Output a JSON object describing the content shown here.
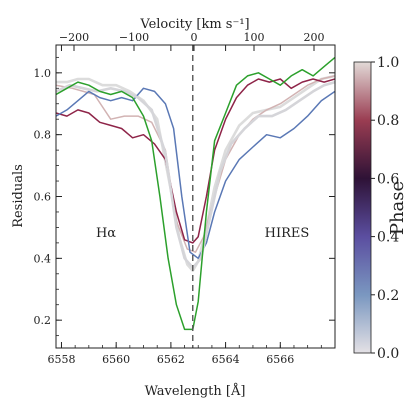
{
  "chart_data": {
    "type": "line",
    "xlabel": "Wavelength [Å]",
    "ylabel": "Residuals",
    "top_axis_label": "Velocity [km s⁻¹]",
    "xlim": [
      6557.8,
      6568.0
    ],
    "ylim": [
      0.11,
      1.09
    ],
    "top_xlim": [
      -230,
      235
    ],
    "x_ticks": [
      "6558",
      "6560",
      "6562",
      "6564",
      "6566"
    ],
    "y_ticks": [
      "0.2",
      "0.4",
      "0.6",
      "0.8",
      "1.0"
    ],
    "top_ticks": [
      "−200",
      "−100",
      "0",
      "100",
      "200"
    ],
    "annotations": [
      "Hα",
      "HIRES"
    ],
    "vline": {
      "x": 6562.8,
      "style": "dashed"
    },
    "colorbar": {
      "label": "Phase",
      "range": [
        0.0,
        1.0
      ],
      "ticks": [
        "0.0",
        "0.2",
        "0.4",
        "0.6",
        "0.8",
        "1.0"
      ]
    },
    "series": [
      {
        "phase": 1.0,
        "color": "#dcdcdc",
        "points": [
          [
            6557.8,
            0.97
          ],
          [
            6558.2,
            0.97
          ],
          [
            6558.6,
            0.98
          ],
          [
            6559.0,
            0.98
          ],
          [
            6559.5,
            0.96
          ],
          [
            6560.0,
            0.96
          ],
          [
            6560.5,
            0.94
          ],
          [
            6561.0,
            0.91
          ],
          [
            6561.5,
            0.85
          ],
          [
            6562.0,
            0.62
          ],
          [
            6562.3,
            0.47
          ],
          [
            6562.6,
            0.38
          ],
          [
            6562.8,
            0.36
          ],
          [
            6563.0,
            0.39
          ],
          [
            6563.3,
            0.5
          ],
          [
            6563.6,
            0.63
          ],
          [
            6564.0,
            0.75
          ],
          [
            6564.5,
            0.83
          ],
          [
            6565.0,
            0.87
          ],
          [
            6565.5,
            0.88
          ],
          [
            6566.0,
            0.89
          ],
          [
            6566.5,
            0.92
          ],
          [
            6567.0,
            0.95
          ],
          [
            6567.5,
            0.98
          ],
          [
            6568.0,
            0.99
          ]
        ]
      },
      {
        "phase": 0.9,
        "color": "#d2b3b3",
        "points": [
          [
            6557.8,
            0.96
          ],
          [
            6558.4,
            0.95
          ],
          [
            6558.8,
            0.94
          ],
          [
            6559.2,
            0.93
          ],
          [
            6559.8,
            0.85
          ],
          [
            6560.3,
            0.86
          ],
          [
            6560.8,
            0.86
          ],
          [
            6561.3,
            0.84
          ],
          [
            6561.8,
            0.75
          ],
          [
            6562.2,
            0.52
          ],
          [
            6562.6,
            0.43
          ],
          [
            6562.9,
            0.42
          ],
          [
            6563.2,
            0.47
          ],
          [
            6563.6,
            0.6
          ],
          [
            6564.0,
            0.72
          ],
          [
            6564.5,
            0.8
          ],
          [
            6565.0,
            0.85
          ],
          [
            6565.5,
            0.88
          ],
          [
            6566.0,
            0.9
          ],
          [
            6566.5,
            0.93
          ],
          [
            6567.0,
            0.96
          ],
          [
            6567.5,
            0.98
          ],
          [
            6568.0,
            0.99
          ]
        ]
      },
      {
        "phase": 0.75,
        "color": "#8e2448",
        "points": [
          [
            6557.8,
            0.87
          ],
          [
            6558.2,
            0.86
          ],
          [
            6558.6,
            0.88
          ],
          [
            6559.0,
            0.87
          ],
          [
            6559.4,
            0.84
          ],
          [
            6559.8,
            0.83
          ],
          [
            6560.2,
            0.82
          ],
          [
            6560.6,
            0.79
          ],
          [
            6561.0,
            0.8
          ],
          [
            6561.4,
            0.77
          ],
          [
            6561.8,
            0.72
          ],
          [
            6562.2,
            0.55
          ],
          [
            6562.5,
            0.46
          ],
          [
            6562.8,
            0.45
          ],
          [
            6563.0,
            0.47
          ],
          [
            6563.3,
            0.6
          ],
          [
            6563.6,
            0.75
          ],
          [
            6564.0,
            0.85
          ],
          [
            6564.4,
            0.92
          ],
          [
            6564.8,
            0.96
          ],
          [
            6565.2,
            0.98
          ],
          [
            6565.6,
            0.97
          ],
          [
            6566.0,
            0.98
          ],
          [
            6566.4,
            0.95
          ],
          [
            6566.8,
            0.97
          ],
          [
            6567.2,
            0.98
          ],
          [
            6567.6,
            0.97
          ],
          [
            6568.0,
            0.98
          ]
        ]
      },
      {
        "phase": 0.3,
        "color": "#5a78b5",
        "points": [
          [
            6557.8,
            0.86
          ],
          [
            6558.2,
            0.88
          ],
          [
            6558.6,
            0.91
          ],
          [
            6559.0,
            0.94
          ],
          [
            6559.4,
            0.92
          ],
          [
            6559.8,
            0.91
          ],
          [
            6560.2,
            0.92
          ],
          [
            6560.6,
            0.91
          ],
          [
            6561.0,
            0.95
          ],
          [
            6561.4,
            0.94
          ],
          [
            6561.8,
            0.9
          ],
          [
            6562.1,
            0.82
          ],
          [
            6562.4,
            0.6
          ],
          [
            6562.7,
            0.42
          ],
          [
            6563.0,
            0.4
          ],
          [
            6563.3,
            0.45
          ],
          [
            6563.6,
            0.55
          ],
          [
            6564.0,
            0.65
          ],
          [
            6564.5,
            0.72
          ],
          [
            6565.0,
            0.76
          ],
          [
            6565.5,
            0.8
          ],
          [
            6566.0,
            0.79
          ],
          [
            6566.5,
            0.82
          ],
          [
            6567.0,
            0.86
          ],
          [
            6567.5,
            0.91
          ],
          [
            6568.0,
            0.94
          ]
        ]
      },
      {
        "phase": 0.05,
        "color": "#d5d5d9",
        "points": [
          [
            6557.8,
            0.94
          ],
          [
            6558.3,
            0.96
          ],
          [
            6558.8,
            0.95
          ],
          [
            6559.3,
            0.94
          ],
          [
            6559.8,
            0.95
          ],
          [
            6560.3,
            0.94
          ],
          [
            6560.8,
            0.92
          ],
          [
            6561.3,
            0.88
          ],
          [
            6561.8,
            0.74
          ],
          [
            6562.2,
            0.5
          ],
          [
            6562.5,
            0.4
          ],
          [
            6562.8,
            0.37
          ],
          [
            6563.1,
            0.4
          ],
          [
            6563.4,
            0.52
          ],
          [
            6563.8,
            0.68
          ],
          [
            6564.2,
            0.77
          ],
          [
            6564.7,
            0.82
          ],
          [
            6565.2,
            0.86
          ],
          [
            6565.7,
            0.86
          ],
          [
            6566.2,
            0.88
          ],
          [
            6566.7,
            0.91
          ],
          [
            6567.2,
            0.94
          ],
          [
            6567.6,
            0.96
          ],
          [
            6568.0,
            0.97
          ]
        ]
      },
      {
        "phase": null,
        "color": "#2ca02c",
        "points": [
          [
            6557.8,
            0.93
          ],
          [
            6558.2,
            0.95
          ],
          [
            6558.6,
            0.97
          ],
          [
            6559.0,
            0.96
          ],
          [
            6559.4,
            0.94
          ],
          [
            6559.8,
            0.93
          ],
          [
            6560.2,
            0.94
          ],
          [
            6560.6,
            0.92
          ],
          [
            6561.0,
            0.86
          ],
          [
            6561.3,
            0.78
          ],
          [
            6561.6,
            0.6
          ],
          [
            6561.9,
            0.4
          ],
          [
            6562.2,
            0.25
          ],
          [
            6562.5,
            0.17
          ],
          [
            6562.8,
            0.17
          ],
          [
            6563.0,
            0.26
          ],
          [
            6563.3,
            0.55
          ],
          [
            6563.6,
            0.78
          ],
          [
            6564.0,
            0.87
          ],
          [
            6564.4,
            0.96
          ],
          [
            6564.8,
            0.99
          ],
          [
            6565.2,
            1.0
          ],
          [
            6565.6,
            0.98
          ],
          [
            6566.0,
            0.96
          ],
          [
            6566.4,
            0.99
          ],
          [
            6566.8,
            1.01
          ],
          [
            6567.2,
            0.99
          ],
          [
            6567.6,
            1.02
          ],
          [
            6568.0,
            1.05
          ]
        ]
      }
    ]
  }
}
